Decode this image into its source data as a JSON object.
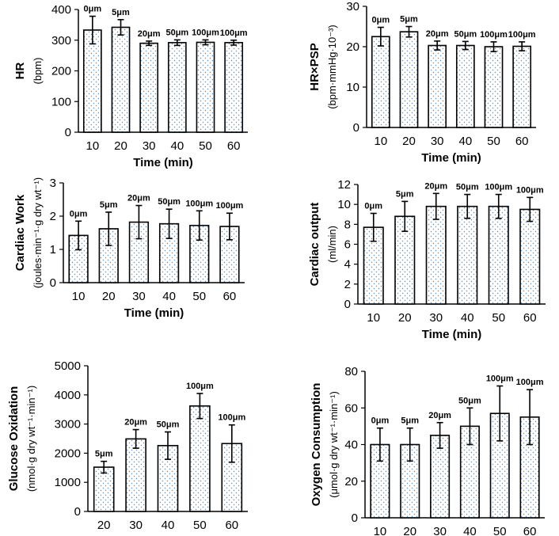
{
  "chart_data": [
    {
      "type": "bar",
      "id": "hr",
      "ylabel_bold": "HR",
      "ylabel_units": "(bpm)",
      "xlabel": "Time (min)",
      "categories": [
        "10",
        "20",
        "30",
        "40",
        "50",
        "60"
      ],
      "values": [
        333,
        342,
        290,
        292,
        293,
        292
      ],
      "errors": [
        45,
        25,
        7,
        9,
        8,
        8
      ],
      "bar_labels": [
        "0μm",
        "5μm",
        "20μm",
        "50μm",
        "100μm",
        "100μm"
      ],
      "ylim": [
        0,
        400
      ],
      "yticks": [
        "0",
        "100",
        "200",
        "300",
        "400"
      ]
    },
    {
      "type": "bar",
      "id": "hr-psp",
      "ylabel_bold": "HR×PSP",
      "ylabel_units": "(bpm·mmHg·10⁻³)",
      "xlabel": "Time (min)",
      "categories": [
        "10",
        "20",
        "30",
        "40",
        "50",
        "60"
      ],
      "values": [
        22.5,
        23.7,
        20.3,
        20.3,
        20.0,
        20.1
      ],
      "errors": [
        2.3,
        1.3,
        1.1,
        1.0,
        1.2,
        1.1
      ],
      "bar_labels": [
        "0μm",
        "5μm",
        "20μm",
        "50μm",
        "100μm",
        "100μm"
      ],
      "ylim": [
        0,
        30
      ],
      "yticks": [
        "0",
        "10",
        "20",
        "30"
      ]
    },
    {
      "type": "bar",
      "id": "cardiac-work",
      "ylabel_bold": "Cardiac Work",
      "ylabel_units": "(joules·min⁻¹·g dry wt⁻¹)",
      "xlabel": "Time (min)",
      "categories": [
        "10",
        "20",
        "30",
        "40",
        "50",
        "60"
      ],
      "values": [
        1.42,
        1.62,
        1.82,
        1.77,
        1.72,
        1.69
      ],
      "errors": [
        0.43,
        0.5,
        0.5,
        0.44,
        0.44,
        0.4
      ],
      "bar_labels": [
        "0μm",
        "5μm",
        "20μm",
        "50μm",
        "100μm",
        "100μm"
      ],
      "ylim": [
        0,
        3
      ],
      "yticks": [
        "0",
        "1",
        "2",
        "3"
      ]
    },
    {
      "type": "bar",
      "id": "cardiac-output",
      "ylabel_bold": "Cardiac output",
      "ylabel_units": "(ml/min)",
      "xlabel": "Time (min)",
      "categories": [
        "10",
        "20",
        "30",
        "40",
        "50",
        "60"
      ],
      "values": [
        7.7,
        8.8,
        9.8,
        9.8,
        9.8,
        9.5
      ],
      "errors": [
        1.4,
        1.5,
        1.3,
        1.2,
        1.2,
        1.2
      ],
      "bar_labels": [
        "0μm",
        "5μm",
        "20μm",
        "50μm",
        "100μm",
        "100μm"
      ],
      "ylim": [
        0,
        12
      ],
      "yticks": [
        "0",
        "2",
        "4",
        "6",
        "8",
        "10",
        "12"
      ]
    },
    {
      "type": "bar",
      "id": "glucose-oxidation",
      "ylabel_bold": "Glucose Oxidation",
      "ylabel_units": "(nmol·g dry wt⁻¹·min⁻¹)",
      "xlabel": "Time (min)",
      "categories": [
        "20",
        "30",
        "40",
        "50",
        "60"
      ],
      "values": [
        1520,
        2490,
        2260,
        3620,
        2330
      ],
      "errors": [
        200,
        320,
        470,
        430,
        640
      ],
      "bar_labels": [
        "5μm",
        "20μm",
        "50μm",
        "100μm",
        "100μm"
      ],
      "ylim": [
        0,
        5000
      ],
      "yticks": [
        "0",
        "1000",
        "2000",
        "3000",
        "4000",
        "5000"
      ]
    },
    {
      "type": "bar",
      "id": "oxygen-consumption",
      "ylabel_bold": "Oxygen Consumption",
      "ylabel_units": "(μmol·g dry wt⁻¹·min⁻¹)",
      "xlabel": "Time (min)",
      "categories": [
        "10",
        "20",
        "30",
        "40",
        "50",
        "60"
      ],
      "values": [
        40,
        40,
        45,
        50,
        57,
        55
      ],
      "errors": [
        9,
        9,
        7,
        10,
        15,
        15
      ],
      "bar_labels": [
        "0μm",
        "5μm",
        "20μm",
        "50μm",
        "100μm",
        "100μm"
      ],
      "ylim": [
        0,
        80
      ],
      "yticks": [
        "0",
        "20",
        "40",
        "60",
        "80"
      ]
    }
  ]
}
